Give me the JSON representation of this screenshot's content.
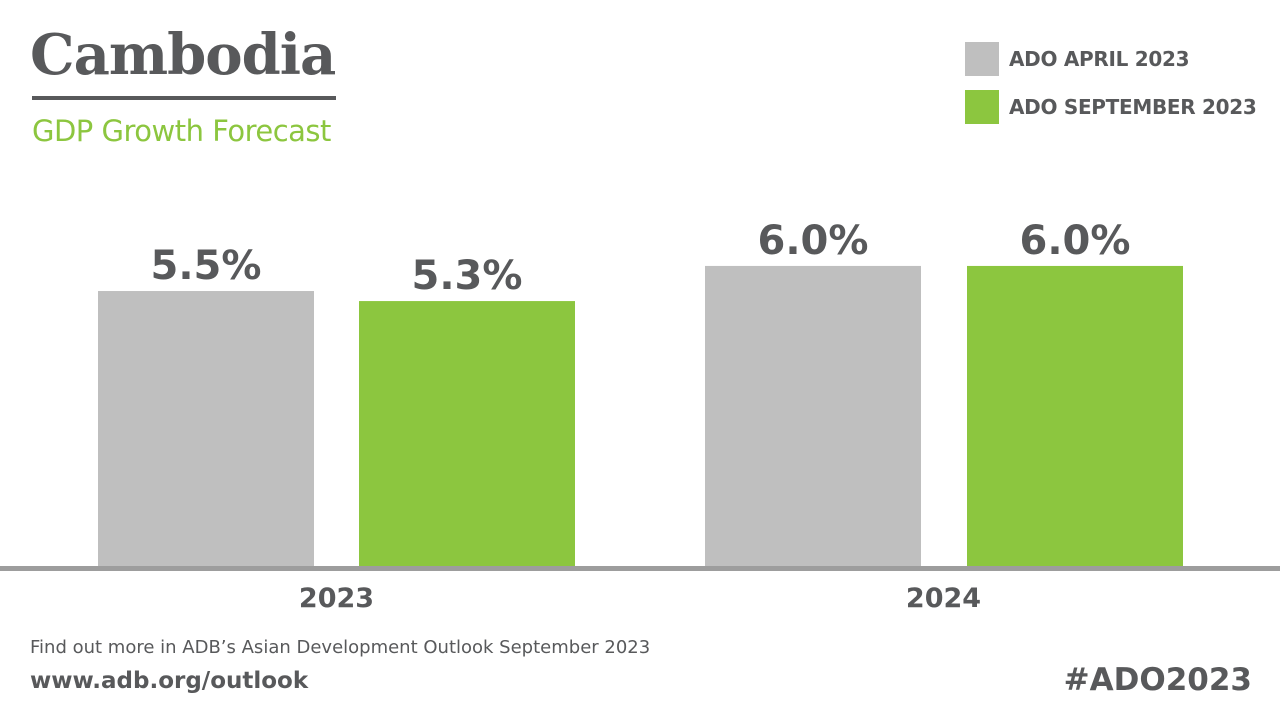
{
  "header": {
    "title": "Cambodia",
    "subtitle": "GDP Growth Forecast"
  },
  "chart_data": {
    "type": "bar",
    "categories": [
      "2023",
      "2024"
    ],
    "series": [
      {
        "name": "ADO APRIL 2023",
        "color": "#bfbfbf",
        "values": [
          5.5,
          6.0
        ],
        "labels": [
          "5.5%",
          "6.0%"
        ]
      },
      {
        "name": "ADO SEPTEMBER 2023",
        "color": "#8cc63f",
        "values": [
          5.3,
          6.0
        ],
        "labels": [
          "5.3%",
          "6.0%"
        ]
      }
    ],
    "ylim": [
      0,
      11.3
    ],
    "grid": false,
    "legend": "top-right"
  },
  "footer": {
    "note": "Find out more in ADB’s Asian Development Outlook September 2023",
    "url": "www.adb.org/outlook",
    "hashtag": "#ADO2023"
  }
}
